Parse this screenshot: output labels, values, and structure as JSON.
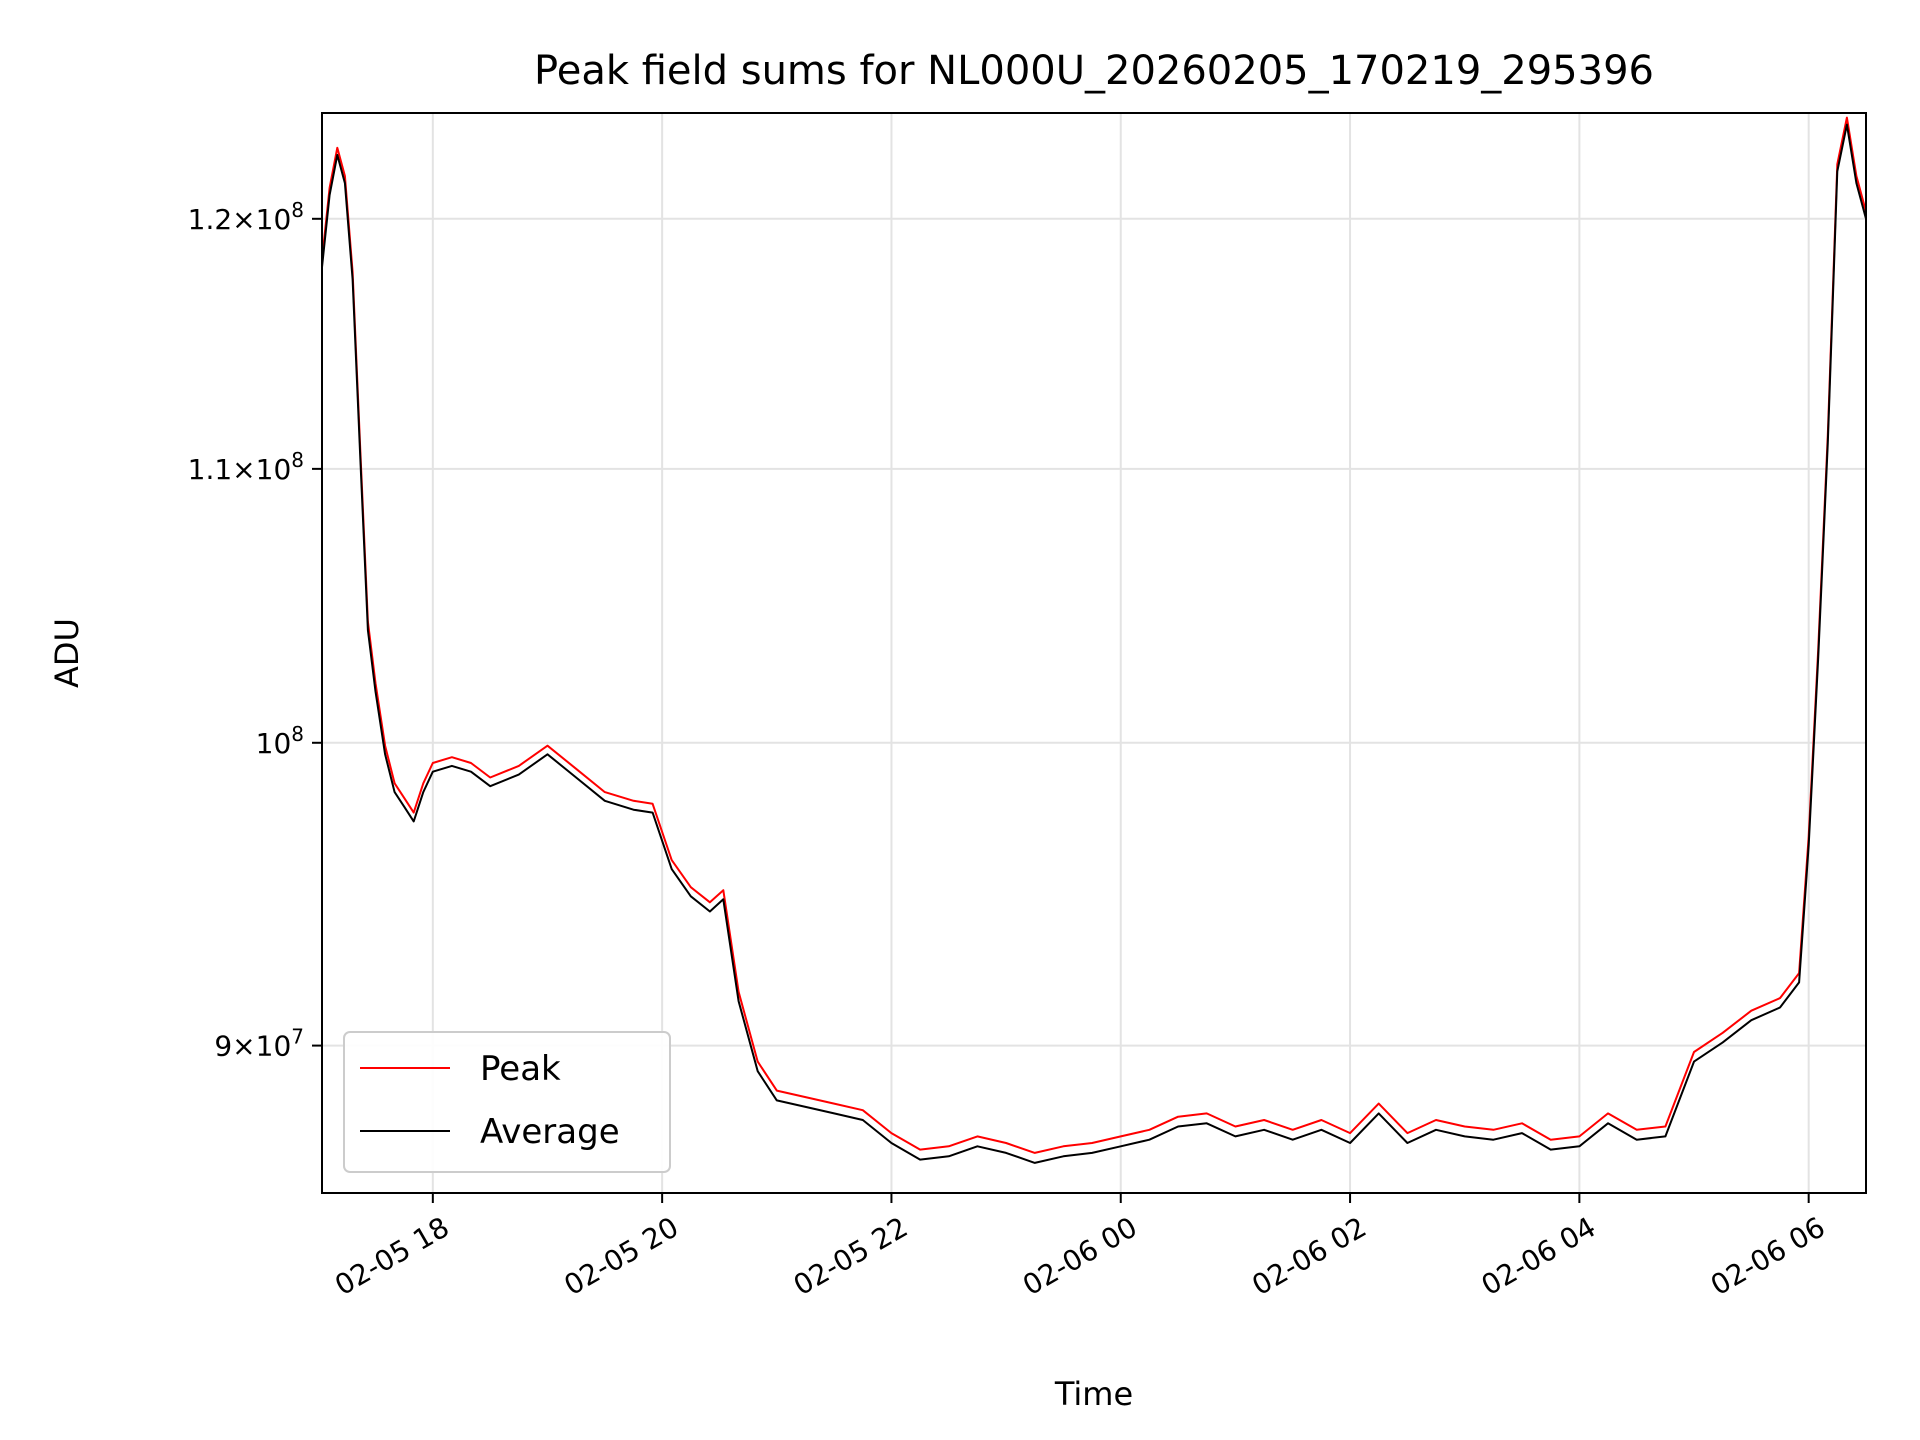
{
  "chart_data": {
    "type": "line",
    "title": "Peak field sums for NL000U_20260205_170219_295396",
    "xlabel": "Time",
    "ylabel": "ADU",
    "yscale": "log",
    "grid": true,
    "legend_position": "lower-left",
    "xlim": [
      "2026-02-05 17:02",
      "2026-02-06 06:30"
    ],
    "ylim": [
      85500000,
      124500000
    ],
    "x_ticks": [
      {
        "value": "2026-02-05 18:00",
        "label": "02-05 18"
      },
      {
        "value": "2026-02-05 20:00",
        "label": "02-05 20"
      },
      {
        "value": "2026-02-05 22:00",
        "label": "02-05 22"
      },
      {
        "value": "2026-02-06 00:00",
        "label": "02-06 00"
      },
      {
        "value": "2026-02-06 02:00",
        "label": "02-06 02"
      },
      {
        "value": "2026-02-06 04:00",
        "label": "02-06 04"
      },
      {
        "value": "2026-02-06 06:00",
        "label": "02-06 06"
      }
    ],
    "y_ticks": [
      {
        "value": 90000000,
        "mantissa": "9",
        "exponent": "7"
      },
      {
        "value": 100000000,
        "mantissa": "",
        "exponent": "8"
      },
      {
        "value": 110000000,
        "mantissa": "1.1",
        "exponent": "8"
      },
      {
        "value": 120000000,
        "mantissa": "1.2",
        "exponent": "8"
      }
    ],
    "series": [
      {
        "name": "Average",
        "color": "#000000",
        "x": [
          "2026-02-05 17:02",
          "2026-02-05 17:06",
          "2026-02-05 17:10",
          "2026-02-05 17:14",
          "2026-02-05 17:18",
          "2026-02-05 17:22",
          "2026-02-05 17:26",
          "2026-02-05 17:30",
          "2026-02-05 17:35",
          "2026-02-05 17:40",
          "2026-02-05 17:45",
          "2026-02-05 17:50",
          "2026-02-05 17:55",
          "2026-02-05 18:00",
          "2026-02-05 18:10",
          "2026-02-05 18:20",
          "2026-02-05 18:30",
          "2026-02-05 18:45",
          "2026-02-05 19:00",
          "2026-02-05 19:15",
          "2026-02-05 19:30",
          "2026-02-05 19:45",
          "2026-02-05 19:55",
          "2026-02-05 20:05",
          "2026-02-05 20:15",
          "2026-02-05 20:25",
          "2026-02-05 20:32",
          "2026-02-05 20:40",
          "2026-02-05 20:50",
          "2026-02-05 21:00",
          "2026-02-05 21:15",
          "2026-02-05 21:30",
          "2026-02-05 21:45",
          "2026-02-05 22:00",
          "2026-02-05 22:15",
          "2026-02-05 22:30",
          "2026-02-05 22:45",
          "2026-02-05 23:00",
          "2026-02-05 23:15",
          "2026-02-05 23:30",
          "2026-02-05 23:45",
          "2026-02-06 00:00",
          "2026-02-06 00:15",
          "2026-02-06 00:30",
          "2026-02-06 00:45",
          "2026-02-06 01:00",
          "2026-02-06 01:15",
          "2026-02-06 01:30",
          "2026-02-06 01:45",
          "2026-02-06 02:00",
          "2026-02-06 02:15",
          "2026-02-06 02:30",
          "2026-02-06 02:45",
          "2026-02-06 03:00",
          "2026-02-06 03:15",
          "2026-02-06 03:30",
          "2026-02-06 03:45",
          "2026-02-06 04:00",
          "2026-02-06 04:15",
          "2026-02-06 04:30",
          "2026-02-06 04:45",
          "2026-02-06 05:00",
          "2026-02-06 05:15",
          "2026-02-06 05:30",
          "2026-02-06 05:45",
          "2026-02-06 05:55",
          "2026-02-06 06:00",
          "2026-02-06 06:05",
          "2026-02-06 06:10",
          "2026-02-06 06:15",
          "2026-02-06 06:20",
          "2026-02-06 06:25",
          "2026-02-06 06:30"
        ],
        "y": [
          118000000,
          121000000,
          122700000,
          121500000,
          117500000,
          110500000,
          104000000,
          101800000,
          99600000,
          98300000,
          97800000,
          97300000,
          98300000,
          99000000,
          99200000,
          99000000,
          98500000,
          98900000,
          99600000,
          98800000,
          98000000,
          97700000,
          97600000,
          95700000,
          94800000,
          94300000,
          94700000,
          91400000,
          89200000,
          88300000,
          88100000,
          87900000,
          87700000,
          87000000,
          86500000,
          86600000,
          86900000,
          86700000,
          86400000,
          86600000,
          86700000,
          86900000,
          87100000,
          87500000,
          87600000,
          87200000,
          87400000,
          87100000,
          87400000,
          87000000,
          87900000,
          87000000,
          87400000,
          87200000,
          87100000,
          87300000,
          86800000,
          86900000,
          87600000,
          87100000,
          87200000,
          89500000,
          90100000,
          90800000,
          91200000,
          92000000,
          96500000,
          103000000,
          111000000,
          122000000,
          124000000,
          121500000,
          120000000
        ]
      },
      {
        "name": "Peak",
        "color": "#ff0000",
        "x": [
          "2026-02-05 17:02",
          "2026-02-05 17:06",
          "2026-02-05 17:10",
          "2026-02-05 17:14",
          "2026-02-05 17:18",
          "2026-02-05 17:22",
          "2026-02-05 17:26",
          "2026-02-05 17:30",
          "2026-02-05 17:35",
          "2026-02-05 17:40",
          "2026-02-05 17:45",
          "2026-02-05 17:50",
          "2026-02-05 17:55",
          "2026-02-05 18:00",
          "2026-02-05 18:10",
          "2026-02-05 18:20",
          "2026-02-05 18:30",
          "2026-02-05 18:45",
          "2026-02-05 19:00",
          "2026-02-05 19:15",
          "2026-02-05 19:30",
          "2026-02-05 19:45",
          "2026-02-05 19:55",
          "2026-02-05 20:05",
          "2026-02-05 20:15",
          "2026-02-05 20:25",
          "2026-02-05 20:32",
          "2026-02-05 20:40",
          "2026-02-05 20:50",
          "2026-02-05 21:00",
          "2026-02-05 21:15",
          "2026-02-05 21:30",
          "2026-02-05 21:45",
          "2026-02-05 22:00",
          "2026-02-05 22:15",
          "2026-02-05 22:30",
          "2026-02-05 22:45",
          "2026-02-05 23:00",
          "2026-02-05 23:15",
          "2026-02-05 23:30",
          "2026-02-05 23:45",
          "2026-02-06 00:00",
          "2026-02-06 00:15",
          "2026-02-06 00:30",
          "2026-02-06 00:45",
          "2026-02-06 01:00",
          "2026-02-06 01:15",
          "2026-02-06 01:30",
          "2026-02-06 01:45",
          "2026-02-06 02:00",
          "2026-02-06 02:15",
          "2026-02-06 02:30",
          "2026-02-06 02:45",
          "2026-02-06 03:00",
          "2026-02-06 03:15",
          "2026-02-06 03:30",
          "2026-02-06 03:45",
          "2026-02-06 04:00",
          "2026-02-06 04:15",
          "2026-02-06 04:30",
          "2026-02-06 04:45",
          "2026-02-06 05:00",
          "2026-02-06 05:15",
          "2026-02-06 05:30",
          "2026-02-06 05:45",
          "2026-02-06 05:55",
          "2026-02-06 06:00",
          "2026-02-06 06:05",
          "2026-02-06 06:10",
          "2026-02-06 06:15",
          "2026-02-06 06:20",
          "2026-02-06 06:25",
          "2026-02-06 06:30"
        ],
        "y": [
          118300000,
          121300000,
          123000000,
          121800000,
          117800000,
          110800000,
          104300000,
          102100000,
          99900000,
          98600000,
          98100000,
          97600000,
          98600000,
          99300000,
          99500000,
          99300000,
          98800000,
          99200000,
          99900000,
          99100000,
          98300000,
          98000000,
          97900000,
          96000000,
          95100000,
          94600000,
          95000000,
          91700000,
          89500000,
          88600000,
          88400000,
          88200000,
          88000000,
          87300000,
          86800000,
          86900000,
          87200000,
          87000000,
          86700000,
          86900000,
          87000000,
          87200000,
          87400000,
          87800000,
          87900000,
          87500000,
          87700000,
          87400000,
          87700000,
          87300000,
          88200000,
          87300000,
          87700000,
          87500000,
          87400000,
          87600000,
          87100000,
          87200000,
          87900000,
          87400000,
          87500000,
          89800000,
          90400000,
          91100000,
          91500000,
          92300000,
          96800000,
          103300000,
          111300000,
          122300000,
          124300000,
          121800000,
          120300000
        ]
      }
    ]
  },
  "legend": {
    "items": [
      {
        "label": "Peak",
        "color": "#ff0000"
      },
      {
        "label": "Average",
        "color": "#000000"
      }
    ]
  }
}
